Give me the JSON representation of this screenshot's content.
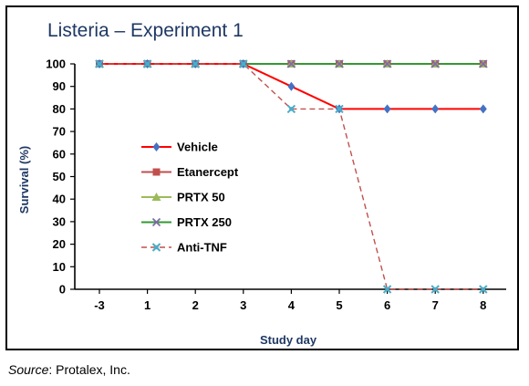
{
  "source": {
    "prefix": "Source",
    "text": ": Protalex, Inc."
  },
  "chart_data": {
    "type": "line",
    "title": "Listeria – Experiment 1",
    "xlabel": "Study day",
    "ylabel": "Survival (%)",
    "categories": [
      "-3",
      "1",
      "2",
      "3",
      "4",
      "5",
      "6",
      "7",
      "8"
    ],
    "ylim": [
      0,
      100
    ],
    "yticks": [
      0,
      10,
      20,
      30,
      40,
      50,
      60,
      70,
      80,
      90,
      100
    ],
    "grid": false,
    "legend_position": "left-center",
    "series": [
      {
        "name": "Vehicle",
        "values": [
          100,
          100,
          100,
          100,
          90,
          80,
          80,
          80,
          80
        ],
        "color": "#ff0000",
        "line": "solid",
        "marker": "diamond",
        "marker_color": "#4472c4"
      },
      {
        "name": "Etanercept",
        "values": [
          100,
          100,
          100,
          100,
          100,
          100,
          100,
          100,
          100
        ],
        "color": "#c0504d",
        "line": "solid",
        "marker": "square",
        "marker_color": "#c0504d"
      },
      {
        "name": "PRTX 50",
        "values": [
          100,
          100,
          100,
          100,
          100,
          100,
          100,
          100,
          100
        ],
        "color": "#9bbb59",
        "line": "solid",
        "marker": "triangle",
        "marker_color": "#9bbb59"
      },
      {
        "name": "PRTX 250",
        "values": [
          100,
          100,
          100,
          100,
          100,
          100,
          100,
          100,
          100
        ],
        "color": "#339933",
        "line": "solid",
        "marker": "x",
        "marker_color": "#7f6aa8"
      },
      {
        "name": "Anti-TNF",
        "values": [
          100,
          100,
          100,
          100,
          80,
          80,
          0,
          0,
          0
        ],
        "color": "#c0504d",
        "line": "dashed",
        "marker": "star",
        "marker_color": "#4bacc6"
      }
    ]
  }
}
